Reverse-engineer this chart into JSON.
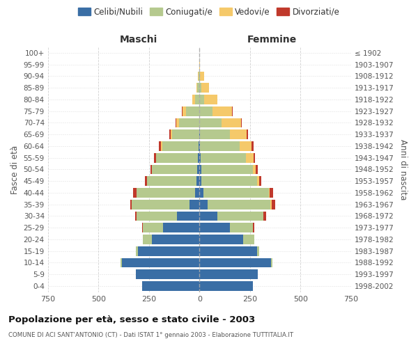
{
  "age_groups": [
    "0-4",
    "5-9",
    "10-14",
    "15-19",
    "20-24",
    "25-29",
    "30-34",
    "35-39",
    "40-44",
    "45-49",
    "50-54",
    "55-59",
    "60-64",
    "65-69",
    "70-74",
    "75-79",
    "80-84",
    "85-89",
    "90-94",
    "95-99",
    "100+"
  ],
  "birth_years": [
    "1998-2002",
    "1993-1997",
    "1988-1992",
    "1983-1987",
    "1978-1982",
    "1973-1977",
    "1968-1972",
    "1963-1967",
    "1958-1962",
    "1953-1957",
    "1948-1952",
    "1943-1947",
    "1938-1942",
    "1933-1937",
    "1928-1932",
    "1923-1927",
    "1918-1922",
    "1913-1917",
    "1908-1912",
    "1903-1907",
    "≤ 1902"
  ],
  "male_celibi": [
    285,
    315,
    385,
    305,
    235,
    180,
    110,
    50,
    22,
    15,
    10,
    8,
    5,
    0,
    0,
    0,
    0,
    0,
    0,
    0,
    0
  ],
  "male_coniugati": [
    0,
    0,
    5,
    8,
    45,
    100,
    200,
    285,
    290,
    245,
    225,
    205,
    180,
    135,
    100,
    65,
    22,
    10,
    5,
    0,
    0
  ],
  "male_vedovi": [
    0,
    0,
    0,
    0,
    0,
    0,
    0,
    0,
    0,
    0,
    1,
    2,
    4,
    8,
    14,
    18,
    12,
    5,
    2,
    0,
    0
  ],
  "male_divorziati": [
    0,
    0,
    0,
    0,
    0,
    3,
    8,
    8,
    18,
    10,
    5,
    10,
    12,
    6,
    5,
    5,
    2,
    0,
    0,
    0,
    0
  ],
  "female_nubili": [
    265,
    290,
    355,
    285,
    215,
    150,
    90,
    42,
    18,
    10,
    8,
    5,
    4,
    2,
    0,
    0,
    0,
    0,
    0,
    0,
    0
  ],
  "female_coniugate": [
    0,
    0,
    5,
    12,
    55,
    115,
    225,
    310,
    325,
    275,
    255,
    225,
    195,
    150,
    110,
    65,
    22,
    8,
    4,
    0,
    0
  ],
  "female_vedove": [
    0,
    0,
    0,
    0,
    0,
    0,
    2,
    5,
    5,
    10,
    16,
    38,
    58,
    82,
    95,
    95,
    65,
    40,
    18,
    2,
    0
  ],
  "female_divorziate": [
    0,
    0,
    0,
    0,
    2,
    5,
    12,
    18,
    15,
    12,
    8,
    8,
    10,
    5,
    5,
    3,
    2,
    0,
    0,
    0,
    0
  ],
  "color_celibi": "#3a6ea5",
  "color_coniugati": "#b5c98e",
  "color_vedovi": "#f5c96a",
  "color_divorziati": "#c0392b",
  "xlim": 750,
  "xticks": [
    -750,
    -500,
    -250,
    0,
    250,
    500,
    750
  ],
  "xticklabels": [
    "750",
    "500",
    "250",
    "0",
    "250",
    "500",
    "750"
  ],
  "title": "Popolazione per età, sesso e stato civile - 2003",
  "subtitle": "COMUNE DI ACI SANT'ANTONIO (CT) - Dati ISTAT 1° gennaio 2003 - Elaborazione TUTTITALIA.IT",
  "header_left": "Maschi",
  "header_right": "Femmine",
  "ylabel_left": "Fasce di età",
  "ylabel_right": "Anni di nascita",
  "legend_labels": [
    "Celibi/Nubili",
    "Coniugati/e",
    "Vedovi/e",
    "Divorziati/e"
  ],
  "bg_color": "#ffffff",
  "grid_color": "#cccccc"
}
